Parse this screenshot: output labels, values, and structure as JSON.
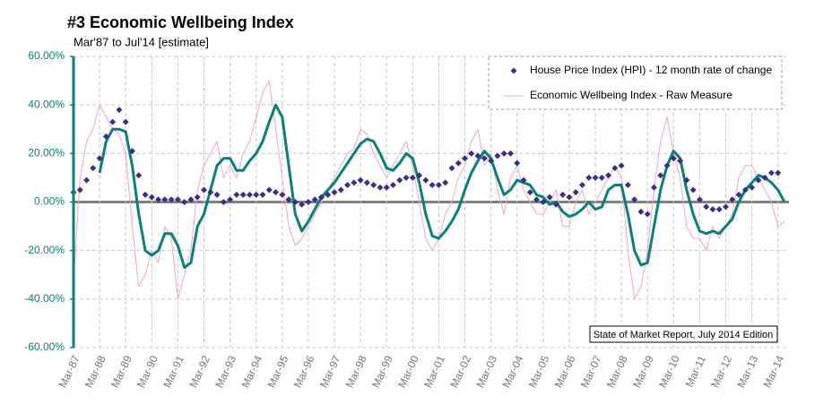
{
  "chart_data": {
    "type": "line",
    "title": "#3 Economic Wellbeing Index",
    "subtitle": "Mar'87 to Jul'14 [estimate]",
    "annotation": "State of Market Report, July 2014 Edition",
    "categories": [
      "Mar-87",
      null,
      null,
      null,
      "Mar-88",
      null,
      null,
      null,
      "Mar-89",
      null,
      null,
      null,
      "Mar-90",
      null,
      null,
      null,
      "Mar-91",
      null,
      null,
      null,
      "Mar-92",
      null,
      null,
      null,
      "Mar-93",
      null,
      null,
      null,
      "Mar-94",
      null,
      null,
      null,
      "Mar-95",
      null,
      null,
      null,
      "Mar-96",
      null,
      null,
      null,
      "Mar-97",
      null,
      null,
      null,
      "Mar-98",
      null,
      null,
      null,
      "Mar-99",
      null,
      null,
      null,
      "Mar-00",
      null,
      null,
      null,
      "Mar-01",
      null,
      null,
      null,
      "Mar-02",
      null,
      null,
      null,
      "Mar-03",
      null,
      null,
      null,
      "Mar-04",
      null,
      null,
      null,
      "Mar-05",
      null,
      null,
      null,
      "Mar-06",
      null,
      null,
      null,
      "Mar-07",
      null,
      null,
      null,
      "Mar-08",
      null,
      null,
      null,
      "Mar-09",
      null,
      null,
      null,
      "Mar-10",
      null,
      null,
      null,
      "Mar-11",
      null,
      null,
      null,
      "Mar-12",
      null,
      null,
      null,
      "Mar-13",
      null,
      null,
      null,
      "Mar-14",
      null
    ],
    "series": [
      {
        "name": "Economic Wellbeing Index - Raw Measure",
        "color": "#f4a3c8",
        "line_width": 1,
        "values": [
          -33,
          10,
          25,
          30,
          40,
          35,
          30,
          28,
          20,
          -10,
          -35,
          -30,
          -20,
          -25,
          -10,
          -15,
          -40,
          -30,
          -20,
          5,
          15,
          20,
          25,
          10,
          15,
          10,
          20,
          25,
          35,
          45,
          50,
          30,
          10,
          -10,
          -18,
          -15,
          -10,
          -5,
          0,
          5,
          10,
          15,
          20,
          22,
          30,
          28,
          20,
          15,
          10,
          15,
          20,
          25,
          15,
          0,
          -15,
          -20,
          -15,
          -5,
          0,
          10,
          15,
          25,
          30,
          15,
          20,
          5,
          -5,
          10,
          15,
          5,
          0,
          -5,
          -5,
          0,
          5,
          -10,
          -10,
          0,
          5,
          -5,
          0,
          5,
          10,
          15,
          10,
          -20,
          -40,
          -35,
          -20,
          5,
          25,
          35,
          20,
          10,
          -10,
          -15,
          -15,
          -20,
          -10,
          -15,
          -10,
          -5,
          10,
          15,
          15,
          10,
          5,
          0,
          -10,
          -8
        ]
      },
      {
        "color": "#0b8077",
        "line_width": 3,
        "values": [
          null,
          null,
          null,
          null,
          12,
          25,
          30,
          30,
          29,
          15,
          -5,
          -20,
          -22,
          -20,
          -13,
          -13,
          -18,
          -27,
          -25,
          -10,
          -5,
          5,
          15,
          18,
          18,
          13,
          13,
          17,
          20,
          25,
          33,
          40,
          35,
          15,
          -5,
          -12,
          -8,
          -3,
          2,
          5,
          8,
          12,
          16,
          20,
          24,
          26,
          25,
          20,
          14,
          13,
          16,
          20,
          18,
          8,
          -5,
          -14,
          -15,
          -12,
          -8,
          -3,
          5,
          12,
          17,
          21,
          18,
          10,
          3,
          5,
          9,
          8,
          7,
          3,
          2,
          -1,
          0,
          -4,
          -6,
          -5,
          -3,
          0,
          -3,
          -2,
          5,
          7,
          7,
          -5,
          -20,
          -26,
          -25,
          -10,
          5,
          15,
          21,
          18,
          5,
          -5,
          -12,
          -13,
          -12,
          -13,
          -10,
          -7,
          0,
          5,
          8,
          11,
          10,
          8,
          5,
          0
        ]
      },
      {
        "name": "House Price Index (HPI) - 12 month rate of change",
        "color": "#3b2d8a",
        "marker": "diamond",
        "values": [
          4,
          5,
          9,
          14,
          18,
          27,
          33,
          38,
          33,
          21,
          11,
          3,
          2,
          1,
          1,
          1,
          1,
          0,
          1,
          2,
          5,
          4,
          3,
          0,
          1,
          3,
          3,
          3,
          3,
          3,
          5,
          4,
          3,
          1,
          0,
          -1,
          0,
          1,
          2,
          3,
          4,
          5,
          7,
          8,
          9,
          8,
          7,
          6,
          6,
          7,
          9,
          10,
          10,
          11,
          9,
          7,
          7,
          8,
          14,
          16,
          18,
          20,
          19,
          18,
          17,
          19,
          20,
          20,
          16,
          9,
          4,
          1,
          0,
          2,
          -1,
          3,
          2,
          4,
          7,
          10,
          10,
          10,
          11,
          14,
          15,
          7,
          1,
          -4,
          -5,
          6,
          11,
          15,
          18,
          17,
          9,
          5,
          1,
          -2,
          -3,
          -3,
          -2,
          1,
          3,
          5,
          6,
          9,
          10,
          12,
          12,
          null
        ]
      }
    ],
    "ylim": [
      -60,
      60
    ],
    "yticks": [
      {
        "value": -60,
        "label": "-60.00%"
      },
      {
        "value": -40,
        "label": "-40.00%"
      },
      {
        "value": -20,
        "label": "-20.00%"
      },
      {
        "value": 0,
        "label": "0.00%"
      },
      {
        "value": 20,
        "label": "20.00%"
      },
      {
        "value": 40,
        "label": "40.00%"
      },
      {
        "value": 60,
        "label": "60.00%"
      }
    ],
    "grid": true,
    "legend": "top-right"
  }
}
